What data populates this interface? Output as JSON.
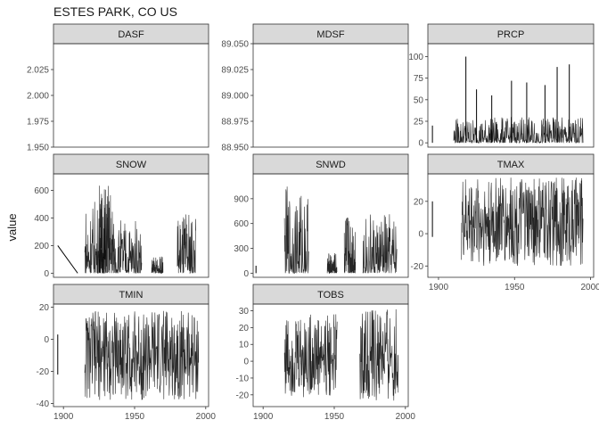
{
  "chart_data": {
    "type": "line",
    "title": "ESTES PARK, CO US",
    "ylabel": "value",
    "xlabel": "",
    "x_ticks": [
      1900,
      1950,
      2000
    ],
    "x_range": [
      1893,
      2002
    ],
    "line_color": "#000000",
    "strip_fill": "#d9d9d9",
    "grid": false,
    "panels": [
      {
        "name": "DASF",
        "y_range": [
          1.95,
          2.05
        ],
        "y_ticks": [
          "1.950",
          "1.975",
          "2.000",
          "2.025"
        ],
        "data": []
      },
      {
        "name": "MDSF",
        "y_range": [
          88.95,
          89.05
        ],
        "y_ticks": [
          "88.950",
          "88.975",
          "89.000",
          "89.025",
          "89.050"
        ],
        "data": []
      },
      {
        "name": "PRCP",
        "y_range": [
          -5,
          115
        ],
        "y_ticks": [
          "0",
          "25",
          "50",
          "75",
          "100"
        ],
        "data": [
          {
            "x": [
              1896,
              1896
            ],
            "y": [
              0,
              20
            ]
          },
          {
            "x": [
              1910,
              1995
            ],
            "y": [
              0,
              30
            ],
            "dense": true
          },
          {
            "x": [
              1918,
              1918
            ],
            "y": [
              0,
              100
            ]
          },
          {
            "x": [
              1925,
              1925
            ],
            "y": [
              0,
              62
            ]
          },
          {
            "x": [
              1935,
              1935
            ],
            "y": [
              0,
              55
            ]
          },
          {
            "x": [
              1948,
              1948
            ],
            "y": [
              0,
              72
            ]
          },
          {
            "x": [
              1958,
              1958
            ],
            "y": [
              0,
              70
            ]
          },
          {
            "x": [
              1970,
              1970
            ],
            "y": [
              0,
              67
            ]
          },
          {
            "x": [
              1978,
              1978
            ],
            "y": [
              0,
              88
            ]
          },
          {
            "x": [
              1986,
              1986
            ],
            "y": [
              0,
              91
            ]
          }
        ]
      },
      {
        "name": "SNOW",
        "y_range": [
          -30,
          720
        ],
        "y_ticks": [
          "0",
          "200",
          "400",
          "600"
        ],
        "data": [
          {
            "x": [
              1896,
              1910
            ],
            "y": [
              200,
              0
            ]
          },
          {
            "x": [
              1915,
              1930
            ],
            "y": [
              0,
              550
            ],
            "dense": true
          },
          {
            "x": [
              1925,
              1935
            ],
            "y": [
              0,
              690
            ],
            "dense": true
          },
          {
            "x": [
              1935,
              1955
            ],
            "y": [
              0,
              400
            ],
            "dense": true
          },
          {
            "x": [
              1962,
              1970
            ],
            "y": [
              0,
              120
            ],
            "dense": true
          },
          {
            "x": [
              1980,
              1993
            ],
            "y": [
              0,
              460
            ],
            "dense": true
          }
        ]
      },
      {
        "name": "SNWD",
        "y_range": [
          -50,
          1200
        ],
        "y_ticks": [
          "0",
          "300",
          "600",
          "900"
        ],
        "data": [
          {
            "x": [
              1895,
              1895
            ],
            "y": [
              0,
              90
            ]
          },
          {
            "x": [
              1915,
              1932
            ],
            "y": [
              0,
              1050
            ],
            "dense": true
          },
          {
            "x": [
              1945,
              1952
            ],
            "y": [
              0,
              250
            ],
            "dense": true
          },
          {
            "x": [
              1957,
              1965
            ],
            "y": [
              0,
              780
            ],
            "dense": true
          },
          {
            "x": [
              1970,
              1994
            ],
            "y": [
              0,
              720
            ],
            "dense": true
          }
        ]
      },
      {
        "name": "TMAX",
        "y_range": [
          -27,
          37
        ],
        "y_ticks": [
          "-20",
          "0",
          "20"
        ],
        "data": [
          {
            "x": [
              1896,
              1896
            ],
            "y": [
              -2,
              20
            ]
          },
          {
            "x": [
              1915,
              1995
            ],
            "y": [
              -20,
              35
            ],
            "dense": true
          }
        ]
      },
      {
        "name": "TMIN",
        "y_range": [
          -42,
          22
        ],
        "y_ticks": [
          "-40",
          "-20",
          "0",
          "20"
        ],
        "data": [
          {
            "x": [
              1896,
              1896
            ],
            "y": [
              -22,
              3
            ]
          },
          {
            "x": [
              1915,
              1995
            ],
            "y": [
              -38,
              18
            ],
            "dense": true
          }
        ]
      },
      {
        "name": "TOBS",
        "y_range": [
          -27,
          34
        ],
        "y_ticks": [
          "-20",
          "-10",
          "0",
          "10",
          "20",
          "30"
        ],
        "data": [
          {
            "x": [
              1915,
              1952
            ],
            "y": [
              -22,
              28
            ],
            "dense": true
          },
          {
            "x": [
              1968,
              1995
            ],
            "y": [
              -25,
              31
            ],
            "dense": true
          }
        ]
      }
    ]
  }
}
